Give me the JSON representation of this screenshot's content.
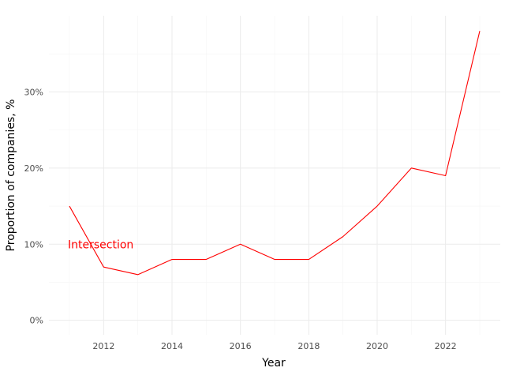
{
  "chart_data": {
    "type": "line",
    "title": "",
    "xlabel": "Year",
    "ylabel": "Proportion of companies, %",
    "x": [
      2011,
      2012,
      2013,
      2014,
      2015,
      2016,
      2017,
      2018,
      2019,
      2020,
      2021,
      2022,
      2023
    ],
    "series": [
      {
        "values": [
          15,
          7,
          6,
          8,
          8,
          10,
          8,
          8,
          11,
          15,
          20,
          19,
          38
        ],
        "color": "#ff0000"
      }
    ],
    "xlim": [
      2010.4,
      2023.6
    ],
    "ylim": [
      -1.9,
      40
    ],
    "xticks": [
      2012,
      2014,
      2016,
      2018,
      2020,
      2022
    ],
    "xtick_labels": [
      "2012",
      "2014",
      "2016",
      "2018",
      "2020",
      "2022"
    ],
    "yticks": [
      0,
      10,
      20,
      30
    ],
    "ytick_labels": [
      "0%",
      "10%",
      "20%",
      "30%"
    ],
    "grid": true,
    "annotations": [
      {
        "text": "Intersection",
        "x": 2011,
        "y": 10,
        "color": "#ff0000"
      }
    ]
  }
}
